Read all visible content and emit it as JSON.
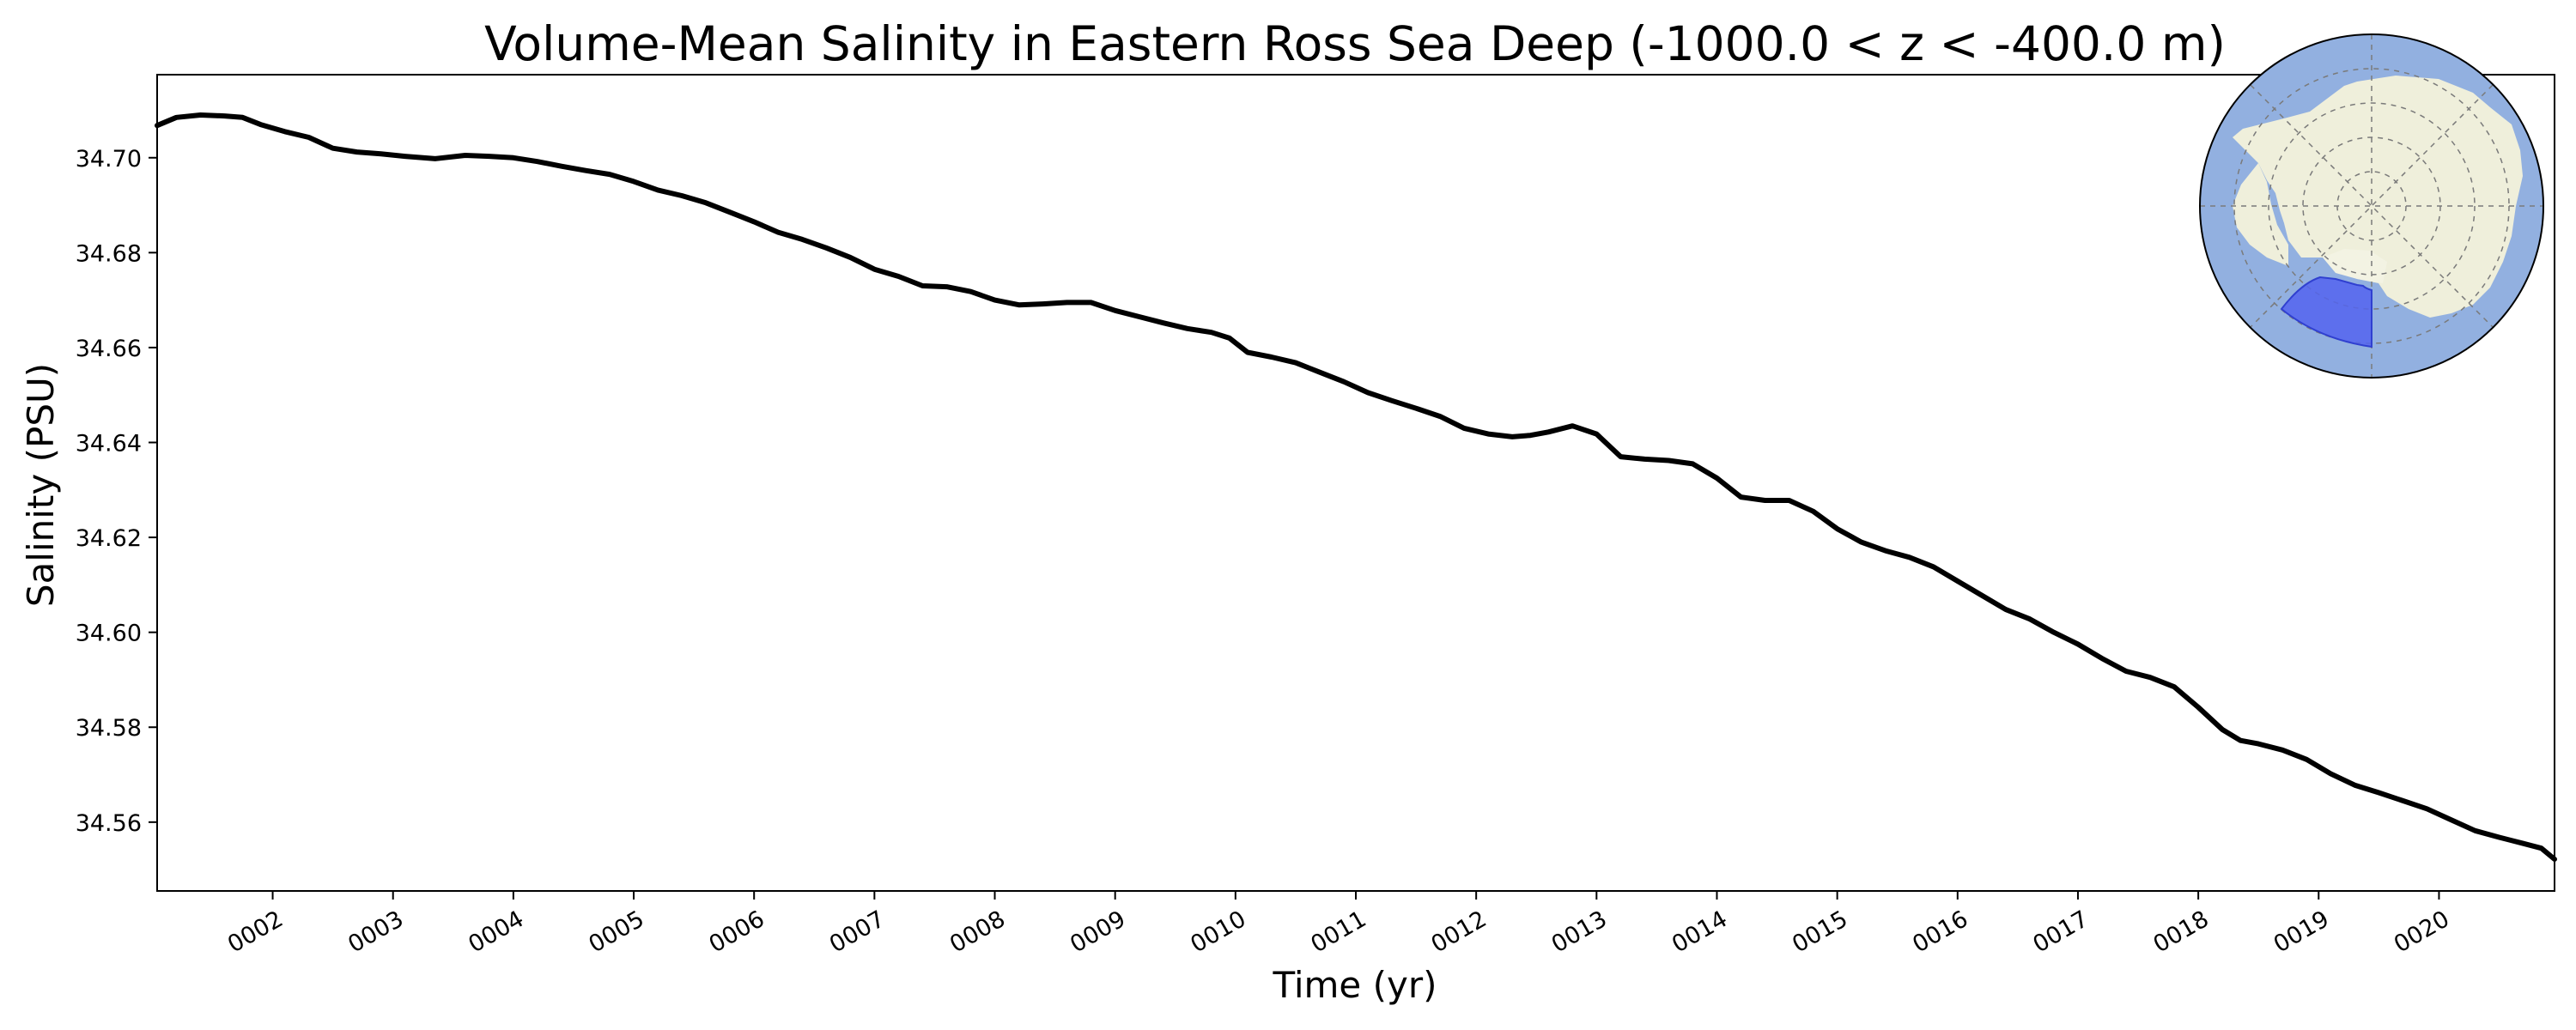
{
  "chart_data": {
    "type": "line",
    "title": "Volume-Mean Salinity in Eastern Ross Sea Deep (-1000.0 < z < -400.0 m)",
    "xlabel": "Time (yr)",
    "ylabel": "Salinity (PSU)",
    "xlim": [
      1.04,
      20.96
    ],
    "ylim": [
      34.5455,
      34.7175
    ],
    "x_ticks": [
      2,
      3,
      4,
      5,
      6,
      7,
      8,
      9,
      10,
      11,
      12,
      13,
      14,
      15,
      16,
      17,
      18,
      19,
      20
    ],
    "x_tick_labels": [
      "0002",
      "0003",
      "0004",
      "0005",
      "0006",
      "0007",
      "0008",
      "0009",
      "0010",
      "0011",
      "0012",
      "0013",
      "0014",
      "0015",
      "0016",
      "0017",
      "0018",
      "0019",
      "0020"
    ],
    "y_ticks": [
      34.56,
      34.58,
      34.6,
      34.62,
      34.64,
      34.66,
      34.68,
      34.7
    ],
    "y_tick_labels": [
      "34.56",
      "34.58",
      "34.60",
      "34.62",
      "34.64",
      "34.66",
      "34.68",
      "34.70"
    ],
    "grid": false,
    "line_color": "#000000",
    "series": [
      {
        "x": [
          1.04,
          1.2,
          1.4,
          1.6,
          1.75,
          1.9,
          2.1,
          2.3,
          2.5,
          2.7,
          2.9,
          3.1,
          3.35,
          3.6,
          3.8,
          4.0,
          4.2,
          4.4,
          4.6,
          4.8,
          5.0,
          5.2,
          5.4,
          5.6,
          5.8,
          6.0,
          6.2,
          6.4,
          6.6,
          6.8,
          7.0,
          7.2,
          7.4,
          7.6,
          7.8,
          8.0,
          8.2,
          8.4,
          8.6,
          8.8,
          9.0,
          9.2,
          9.4,
          9.6,
          9.8,
          9.95,
          10.1,
          10.3,
          10.5,
          10.7,
          10.9,
          11.1,
          11.3,
          11.5,
          11.7,
          11.9,
          12.1,
          12.3,
          12.45,
          12.6,
          12.8,
          13.0,
          13.2,
          13.4,
          13.6,
          13.8,
          14.0,
          14.2,
          14.4,
          14.6,
          14.8,
          15.0,
          15.2,
          15.4,
          15.6,
          15.8,
          16.0,
          16.2,
          16.4,
          16.6,
          16.8,
          17.0,
          17.2,
          17.4,
          17.6,
          17.8,
          18.0,
          18.2,
          18.35,
          18.5,
          18.7,
          18.9,
          19.1,
          19.3,
          19.5,
          19.7,
          19.9,
          20.1,
          20.3,
          20.5,
          20.7,
          20.85,
          20.96
        ],
        "y": [
          34.7068,
          34.7085,
          34.709,
          34.7088,
          34.7085,
          34.707,
          34.7055,
          34.7043,
          34.702,
          34.7012,
          34.7008,
          34.7003,
          34.6998,
          34.7005,
          34.7003,
          34.7,
          34.6992,
          34.6982,
          34.6973,
          34.6965,
          34.695,
          34.6932,
          34.692,
          34.6905,
          34.6885,
          34.6865,
          34.6843,
          34.6828,
          34.681,
          34.679,
          34.6765,
          34.675,
          34.673,
          34.6728,
          34.6718,
          34.67,
          34.669,
          34.6692,
          34.6695,
          34.6695,
          34.6678,
          34.6665,
          34.6652,
          34.664,
          34.6632,
          34.662,
          34.659,
          34.658,
          34.6568,
          34.6548,
          34.6528,
          34.6505,
          34.6488,
          34.6472,
          34.6455,
          34.643,
          34.6418,
          34.6412,
          34.6415,
          34.6422,
          34.6435,
          34.6418,
          34.637,
          34.6365,
          34.6362,
          34.6355,
          34.6325,
          34.6285,
          34.6278,
          34.6278,
          34.6255,
          34.6218,
          34.619,
          34.6172,
          34.6158,
          34.6138,
          34.6108,
          34.6078,
          34.6048,
          34.6028,
          34.6,
          34.5975,
          34.5945,
          34.5918,
          34.5905,
          34.5885,
          34.5842,
          34.5795,
          34.5772,
          34.5765,
          34.5752,
          34.5732,
          34.5702,
          34.5678,
          34.5662,
          34.5645,
          34.5628,
          34.5605,
          34.5582,
          34.5568,
          34.5555,
          34.5545,
          34.5522
        ]
      }
    ]
  },
  "inset_map": {
    "ocean_color": "#92b0e0",
    "land_color": "#efefdb",
    "region_color": "#5464ef"
  }
}
